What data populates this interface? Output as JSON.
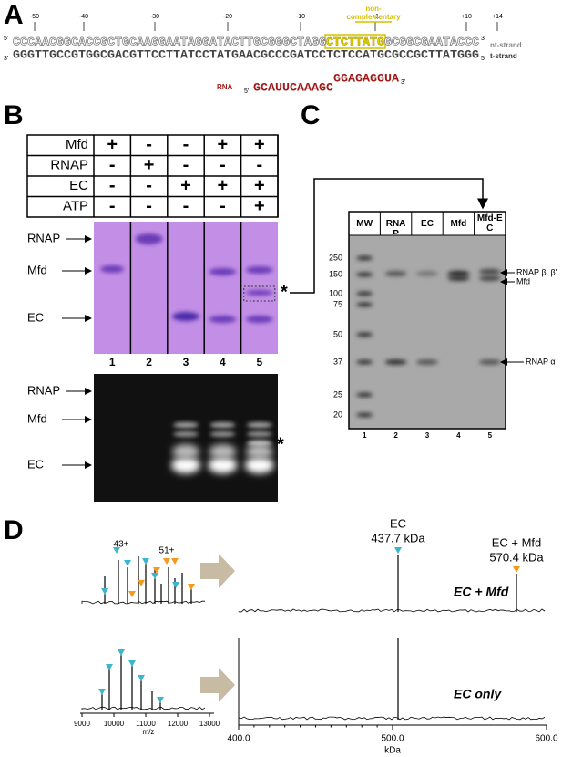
{
  "panel_a": {
    "label": "A",
    "positions": [
      "-50",
      "-40",
      "-30",
      "-20",
      "-10",
      "+1",
      "+10",
      "+14"
    ],
    "non_complementary": [
      "non-",
      "complementary"
    ],
    "nt_strand": {
      "five": "5'",
      "seq": [
        "CCCAACGGCACCGCTGCAAGGAATAGGATACTTGCGGGCTA",
        "GG",
        "CTCTTATG",
        "GCGGCGAATACCC"
      ],
      "three": "3'",
      "name": "nt-strand"
    },
    "t_strand": {
      "three": "3'",
      "seq": "GGGTTGCCGTGGCGACGTTCCTTATCCTATGAACGCCCGATCCTCTCCATGCGCCGCTTATGGG",
      "five": "5'",
      "name": "t-strand"
    },
    "rna": {
      "name": "RNA",
      "five": "5'",
      "seq": [
        "GCAUUCAAAGC",
        "GGAGAGGUA"
      ],
      "three": "3'"
    }
  },
  "panel_b": {
    "label": "B",
    "table": [
      {
        "label": "Mfd",
        "cells": [
          "+",
          "-",
          "-",
          "+",
          "+"
        ]
      },
      {
        "label": "RNAP",
        "cells": [
          "-",
          "+",
          "-",
          "-",
          "-"
        ]
      },
      {
        "label": "EC",
        "cells": [
          "-",
          "-",
          "+",
          "+",
          "+"
        ]
      },
      {
        "label": "ATP",
        "cells": [
          "-",
          "-",
          "-",
          "-",
          "+"
        ]
      }
    ],
    "gel_labels": [
      "RNAP",
      "Mfd",
      "EC"
    ],
    "lanes": [
      "1",
      "2",
      "3",
      "4",
      "5"
    ],
    "star": "*",
    "gel2_labels": [
      "RNAP",
      "Mfd",
      "EC"
    ],
    "star2": "*"
  },
  "panel_c": {
    "label": "C",
    "headers": [
      "MW",
      "RNAP",
      "EC",
      "Mfd",
      "Mfd-EC"
    ],
    "markers": [
      "250",
      "150",
      "100",
      "75",
      "50",
      "37",
      "25",
      "20"
    ],
    "band_labels": [
      "RNAP β, β'",
      "Mfd",
      "RNAP α"
    ],
    "lanes": [
      "1",
      "2",
      "3",
      "4",
      "5"
    ]
  },
  "panel_d": {
    "label": "D",
    "charges": [
      "43+",
      "51+"
    ],
    "peak1": {
      "name": "EC",
      "mass": "437.7 kDa"
    },
    "peak2": {
      "name": "EC + Mfd",
      "mass": "570.4 kDa"
    },
    "row_labels": [
      "EC + Mfd",
      "EC only"
    ],
    "mz_ticks": [
      "9000",
      "10000",
      "11000",
      "12000",
      "13000"
    ],
    "mz_label": "m/z",
    "kda_ticks": [
      "400.0",
      "500.0",
      "600.0"
    ],
    "kda_label": "kDa"
  }
}
